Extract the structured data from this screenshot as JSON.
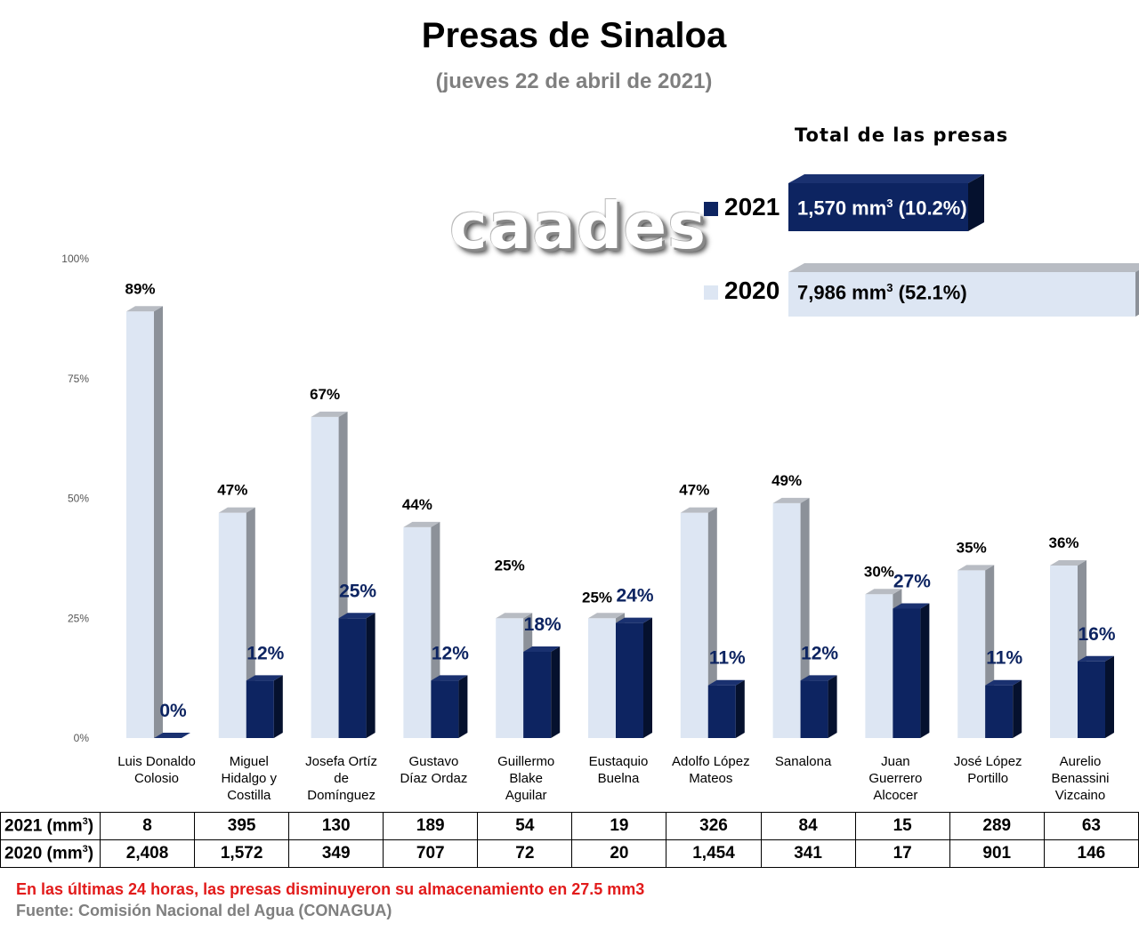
{
  "header": {
    "title": "Presas de Sinaloa",
    "subtitle": "(jueves 22 de abril de 2021)"
  },
  "watermark": "caades",
  "totals": {
    "title": "Total de las presas",
    "rows": [
      {
        "year": "2021",
        "value": "1,570 mm",
        "sup": "3",
        "pct": " (10.2%)",
        "color": "#0d2461"
      },
      {
        "year": "2020",
        "value": "7,986 mm",
        "sup": "3",
        "pct": " (52.1%)",
        "color": "#dde6f3"
      }
    ]
  },
  "chart_data": {
    "type": "bar",
    "categories": [
      [
        "Luis Donaldo",
        "Colosio"
      ],
      [
        "Miguel",
        "Hidalgo y",
        "Costilla"
      ],
      [
        "Josefa Ortíz",
        "de",
        "Domínguez"
      ],
      [
        "Gustavo",
        "Díaz Ordaz"
      ],
      [
        "Guillermo",
        "Blake",
        "Aguilar"
      ],
      [
        "Eustaquio",
        "Buelna"
      ],
      [
        "Adolfo López",
        "Mateos"
      ],
      [
        "Sanalona"
      ],
      [
        "Juan",
        "Guerrero",
        "Alcocer"
      ],
      [
        "José López",
        "Portillo"
      ],
      [
        "Aurelio",
        "Benassini",
        "Vizcaino"
      ]
    ],
    "series": [
      {
        "name": "2020",
        "values": [
          89,
          47,
          67,
          44,
          25,
          25,
          47,
          49,
          30,
          35,
          36
        ],
        "labels": [
          "89%",
          "47%",
          "67%",
          "44%",
          "25%",
          "25%",
          "47%",
          "49%",
          "30%",
          "35%",
          "36%"
        ],
        "color": "#dde6f3"
      },
      {
        "name": "2021",
        "values": [
          0,
          12,
          25,
          12,
          18,
          24,
          11,
          12,
          27,
          11,
          16
        ],
        "labels": [
          "0%",
          "12%",
          "25%",
          "12%",
          "18%",
          "24%",
          "11%",
          "12%",
          "27%",
          "11%",
          "16%"
        ],
        "color": "#0d2461"
      }
    ],
    "yticks": [
      "100%",
      "75%",
      "50%",
      "25%",
      "0%"
    ],
    "ylim": [
      0,
      100
    ]
  },
  "table": {
    "rows": [
      {
        "label": "2021 (mm",
        "sup": "3",
        "close": ")",
        "values": [
          "8",
          "395",
          "130",
          "189",
          "54",
          "19",
          "326",
          "84",
          "15",
          "289",
          "63"
        ]
      },
      {
        "label": "2020 (mm",
        "sup": "3",
        "close": ")",
        "values": [
          "2,408",
          "1,572",
          "349",
          "707",
          "72",
          "20",
          "1,454",
          "341",
          "17",
          "901",
          "146"
        ]
      }
    ]
  },
  "footer": {
    "note": "En las últimas 24 horas, las presas disminuyeron su almacenamiento en 27.5 mm3",
    "source": "Fuente: Comisión Nacional del Agua (CONAGUA)"
  }
}
